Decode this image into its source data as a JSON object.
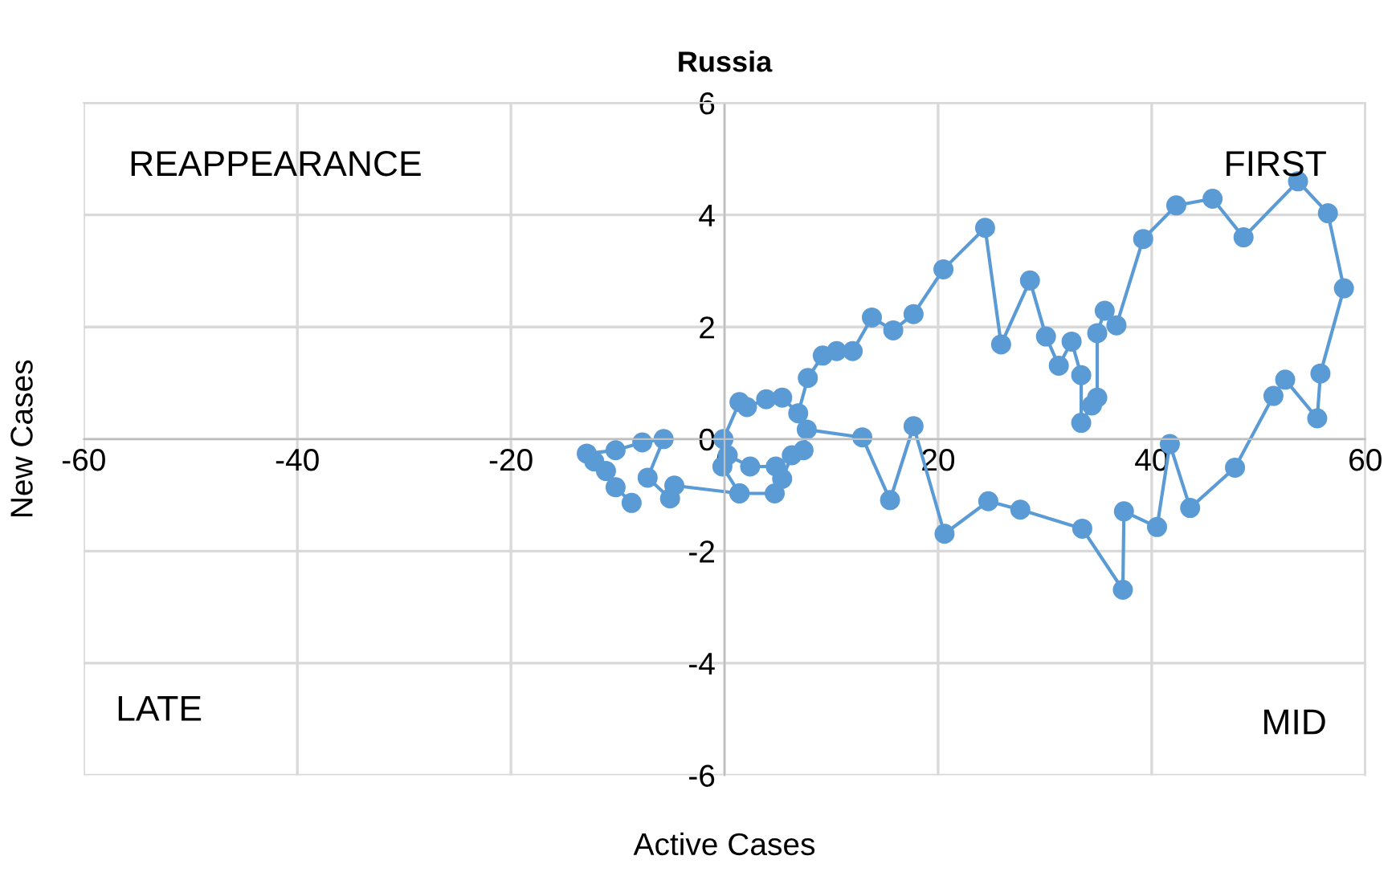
{
  "chart_data": {
    "type": "line",
    "title": "Russia",
    "xlabel": "Active Cases",
    "ylabel": "New Cases",
    "annotations": [
      "FIRST",
      "REAPPEARANCE",
      "LATE",
      "MID"
    ],
    "series": [
      {
        "color": "#5b9bd5",
        "marker": "circle",
        "x": [
          -0.1,
          1.4,
          2.1,
          3.9,
          5.4,
          6.9,
          7.8,
          9.2,
          10.5,
          12.0,
          13.8,
          15.8,
          17.7,
          20.5,
          24.4,
          25.9,
          28.6,
          30.1,
          31.3,
          32.5,
          33.4,
          33.4,
          34.4,
          34.9,
          34.9,
          35.6,
          36.7,
          39.2,
          42.3,
          45.7,
          48.6,
          53.7,
          56.5,
          58.0,
          55.8,
          55.5,
          52.5,
          51.4,
          47.8,
          43.6,
          41.7,
          40.5,
          37.4,
          37.3,
          33.5,
          27.7,
          24.7,
          20.6,
          17.7,
          15.5,
          12.9,
          7.7,
          7.4,
          6.3,
          5.4,
          4.8,
          2.4,
          0.3,
          -0.2,
          1.4,
          4.7,
          1.4,
          -4.7,
          -5.1,
          -7.2,
          -5.7,
          -7.7,
          -10.2,
          -12.9,
          -12.2,
          -11.1,
          -10.2,
          -8.7
        ],
        "values": [
          0,
          0.66,
          0.57,
          0.71,
          0.74,
          0.46,
          1.09,
          1.49,
          1.57,
          1.57,
          2.17,
          1.94,
          2.23,
          3.03,
          3.77,
          1.69,
          2.83,
          1.83,
          1.31,
          1.74,
          1.14,
          0.29,
          0.6,
          0.74,
          1.89,
          2.29,
          2.03,
          3.57,
          4.17,
          4.29,
          3.6,
          4.6,
          4.03,
          2.69,
          1.17,
          0.37,
          1.06,
          0.77,
          -0.51,
          -1.23,
          -0.09,
          -1.57,
          -1.29,
          -2.69,
          -1.6,
          -1.26,
          -1.11,
          -1.69,
          0.23,
          -1.09,
          0.03,
          0.17,
          -0.2,
          -0.29,
          -0.71,
          -0.49,
          -0.49,
          -0.29,
          -0.49,
          -0.97,
          -0.97,
          -0.97,
          -0.83,
          -1.06,
          -0.69,
          0,
          -0.06,
          -0.2,
          -0.26,
          -0.4,
          -0.57,
          -0.86,
          -1.14
        ]
      }
    ],
    "xlim": [
      -60,
      60
    ],
    "ylim": [
      -6,
      6
    ],
    "xticks": [
      -60,
      -40,
      -20,
      0,
      20,
      40,
      60
    ],
    "yticks": [
      -6,
      -4,
      -2,
      0,
      2,
      4,
      6
    ],
    "grid": true,
    "line_style": "solid"
  }
}
